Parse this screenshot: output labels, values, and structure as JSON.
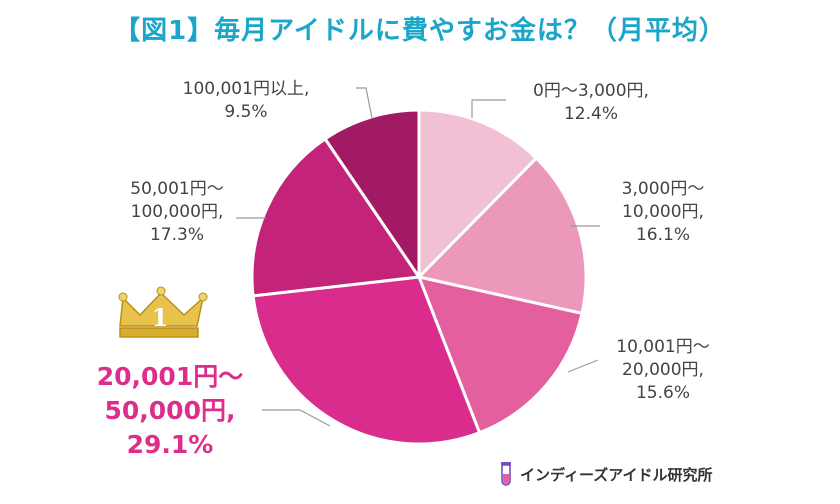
{
  "title": "【図1】毎月アイドルに費やすお金は？（月平均）",
  "footer": {
    "brand": "インディーズアイドル研究所",
    "icon": "test-tube-icon"
  },
  "rank_badge": {
    "icon": "crown-icon",
    "number": "1",
    "colors": {
      "gold": "#e8c24a",
      "gold_dark": "#b8901c"
    }
  },
  "chart_data": {
    "type": "pie",
    "title": "【図1】毎月アイドルに費やすお金は？（月平均）",
    "units": "%",
    "start": "12 o'clock",
    "direction": "clockwise",
    "slices": [
      {
        "label": "0円〜3,000円,",
        "lines": [
          "0円〜3,000円,",
          "12.4%"
        ],
        "value": 12.4,
        "color": "#f2c0d5"
      },
      {
        "label": "3,000円〜10,000円,",
        "lines": [
          "3,000円〜",
          "10,000円,",
          "16.1%"
        ],
        "value": 16.1,
        "color": "#eb98bb"
      },
      {
        "label": "10,001円〜20,000円,",
        "lines": [
          "10,001円〜",
          "20,000円,",
          "15.6%"
        ],
        "value": 15.6,
        "color": "#e35f9d"
      },
      {
        "label": "20,001円〜50,000円,",
        "lines": [
          "20,001円〜",
          "50,000円,",
          "29.1%"
        ],
        "value": 29.1,
        "color": "#d92c8c",
        "highlight": true
      },
      {
        "label": "50,001円〜100,000円,",
        "lines": [
          "50,001円〜",
          "100,000円,",
          "17.3%"
        ],
        "value": 17.3,
        "color": "#c32479"
      },
      {
        "label": "100,001円以上,",
        "lines": [
          "100,001円以上,",
          "9.5%"
        ],
        "value": 9.5,
        "color": "#a11a63"
      }
    ]
  }
}
